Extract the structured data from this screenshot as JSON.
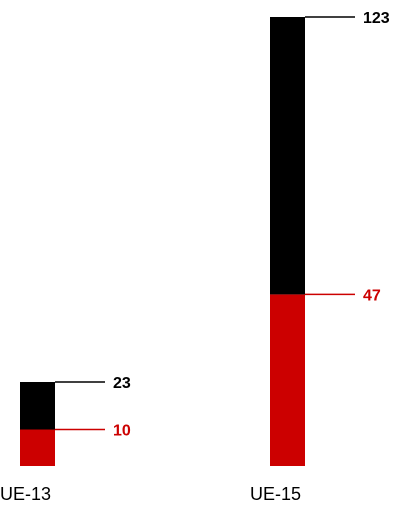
{
  "chart_data": {
    "type": "bar",
    "stacked": true,
    "categories": [
      "UE-13",
      "UE-15"
    ],
    "series": [
      {
        "values": [
          10,
          47
        ],
        "color": "#cc0000"
      },
      {
        "values": [
          13,
          76
        ],
        "color": "#000000"
      }
    ],
    "totals": [
      23,
      123
    ],
    "labels": {
      "totals": [
        "23",
        "123"
      ],
      "bottom": [
        "10",
        "47"
      ]
    },
    "ylim": [
      0,
      123
    ],
    "grid": false,
    "legend": "none"
  }
}
